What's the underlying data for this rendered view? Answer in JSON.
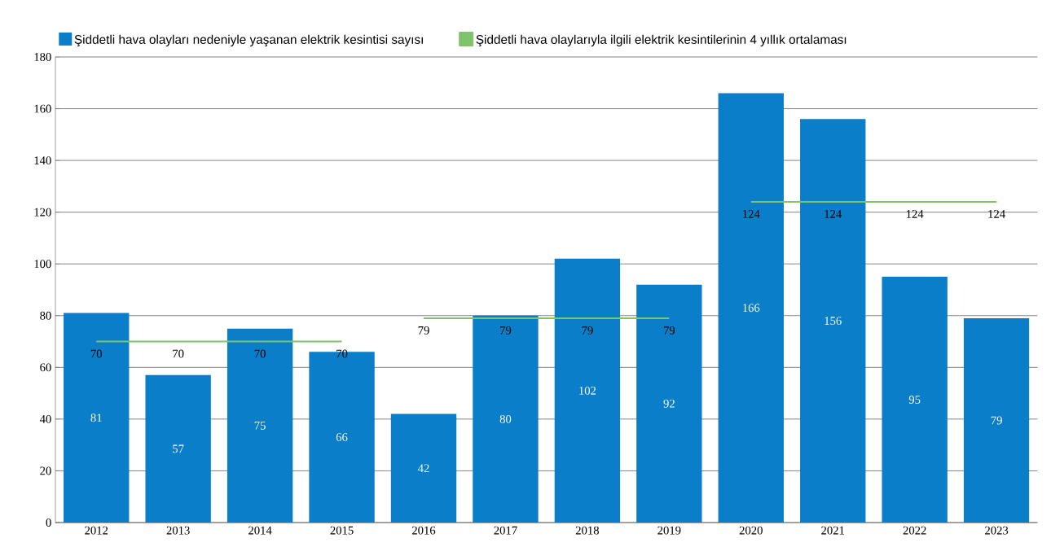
{
  "chart_data": {
    "type": "bar",
    "categories": [
      "2012",
      "2013",
      "2014",
      "2015",
      "2016",
      "2017",
      "2018",
      "2019",
      "2020",
      "2021",
      "2022",
      "2023"
    ],
    "series": [
      {
        "name": "Şiddetli hava olayları nedeniyle yaşanan elektrik kesintisi sayısı",
        "color": "#0a7ec8",
        "values": [
          81,
          57,
          75,
          66,
          42,
          80,
          102,
          92,
          166,
          156,
          95,
          79
        ]
      },
      {
        "name": "Şiddetli hava olaylarıyla ilgili elektrik kesintilerinin 4 yıllık ortalaması",
        "type": "line",
        "color": "#7dc46c",
        "values": [
          70,
          70,
          70,
          70,
          null,
          null,
          null,
          null,
          null,
          null,
          null,
          null
        ]
      },
      {
        "type": "line",
        "color": "#7dc46c",
        "values": [
          null,
          null,
          null,
          null,
          79,
          79,
          79,
          79,
          null,
          null,
          null,
          null
        ]
      },
      {
        "type": "line",
        "color": "#7dc46c",
        "values": [
          null,
          null,
          null,
          null,
          null,
          null,
          null,
          null,
          124,
          124,
          124,
          124
        ]
      }
    ],
    "ylim": [
      0,
      180
    ],
    "yticks": [
      0,
      20,
      40,
      60,
      80,
      100,
      120,
      140,
      160,
      180
    ],
    "grid": "y",
    "legend": "top left",
    "data_labels": true,
    "marker": "none",
    "line_style": "solid"
  }
}
